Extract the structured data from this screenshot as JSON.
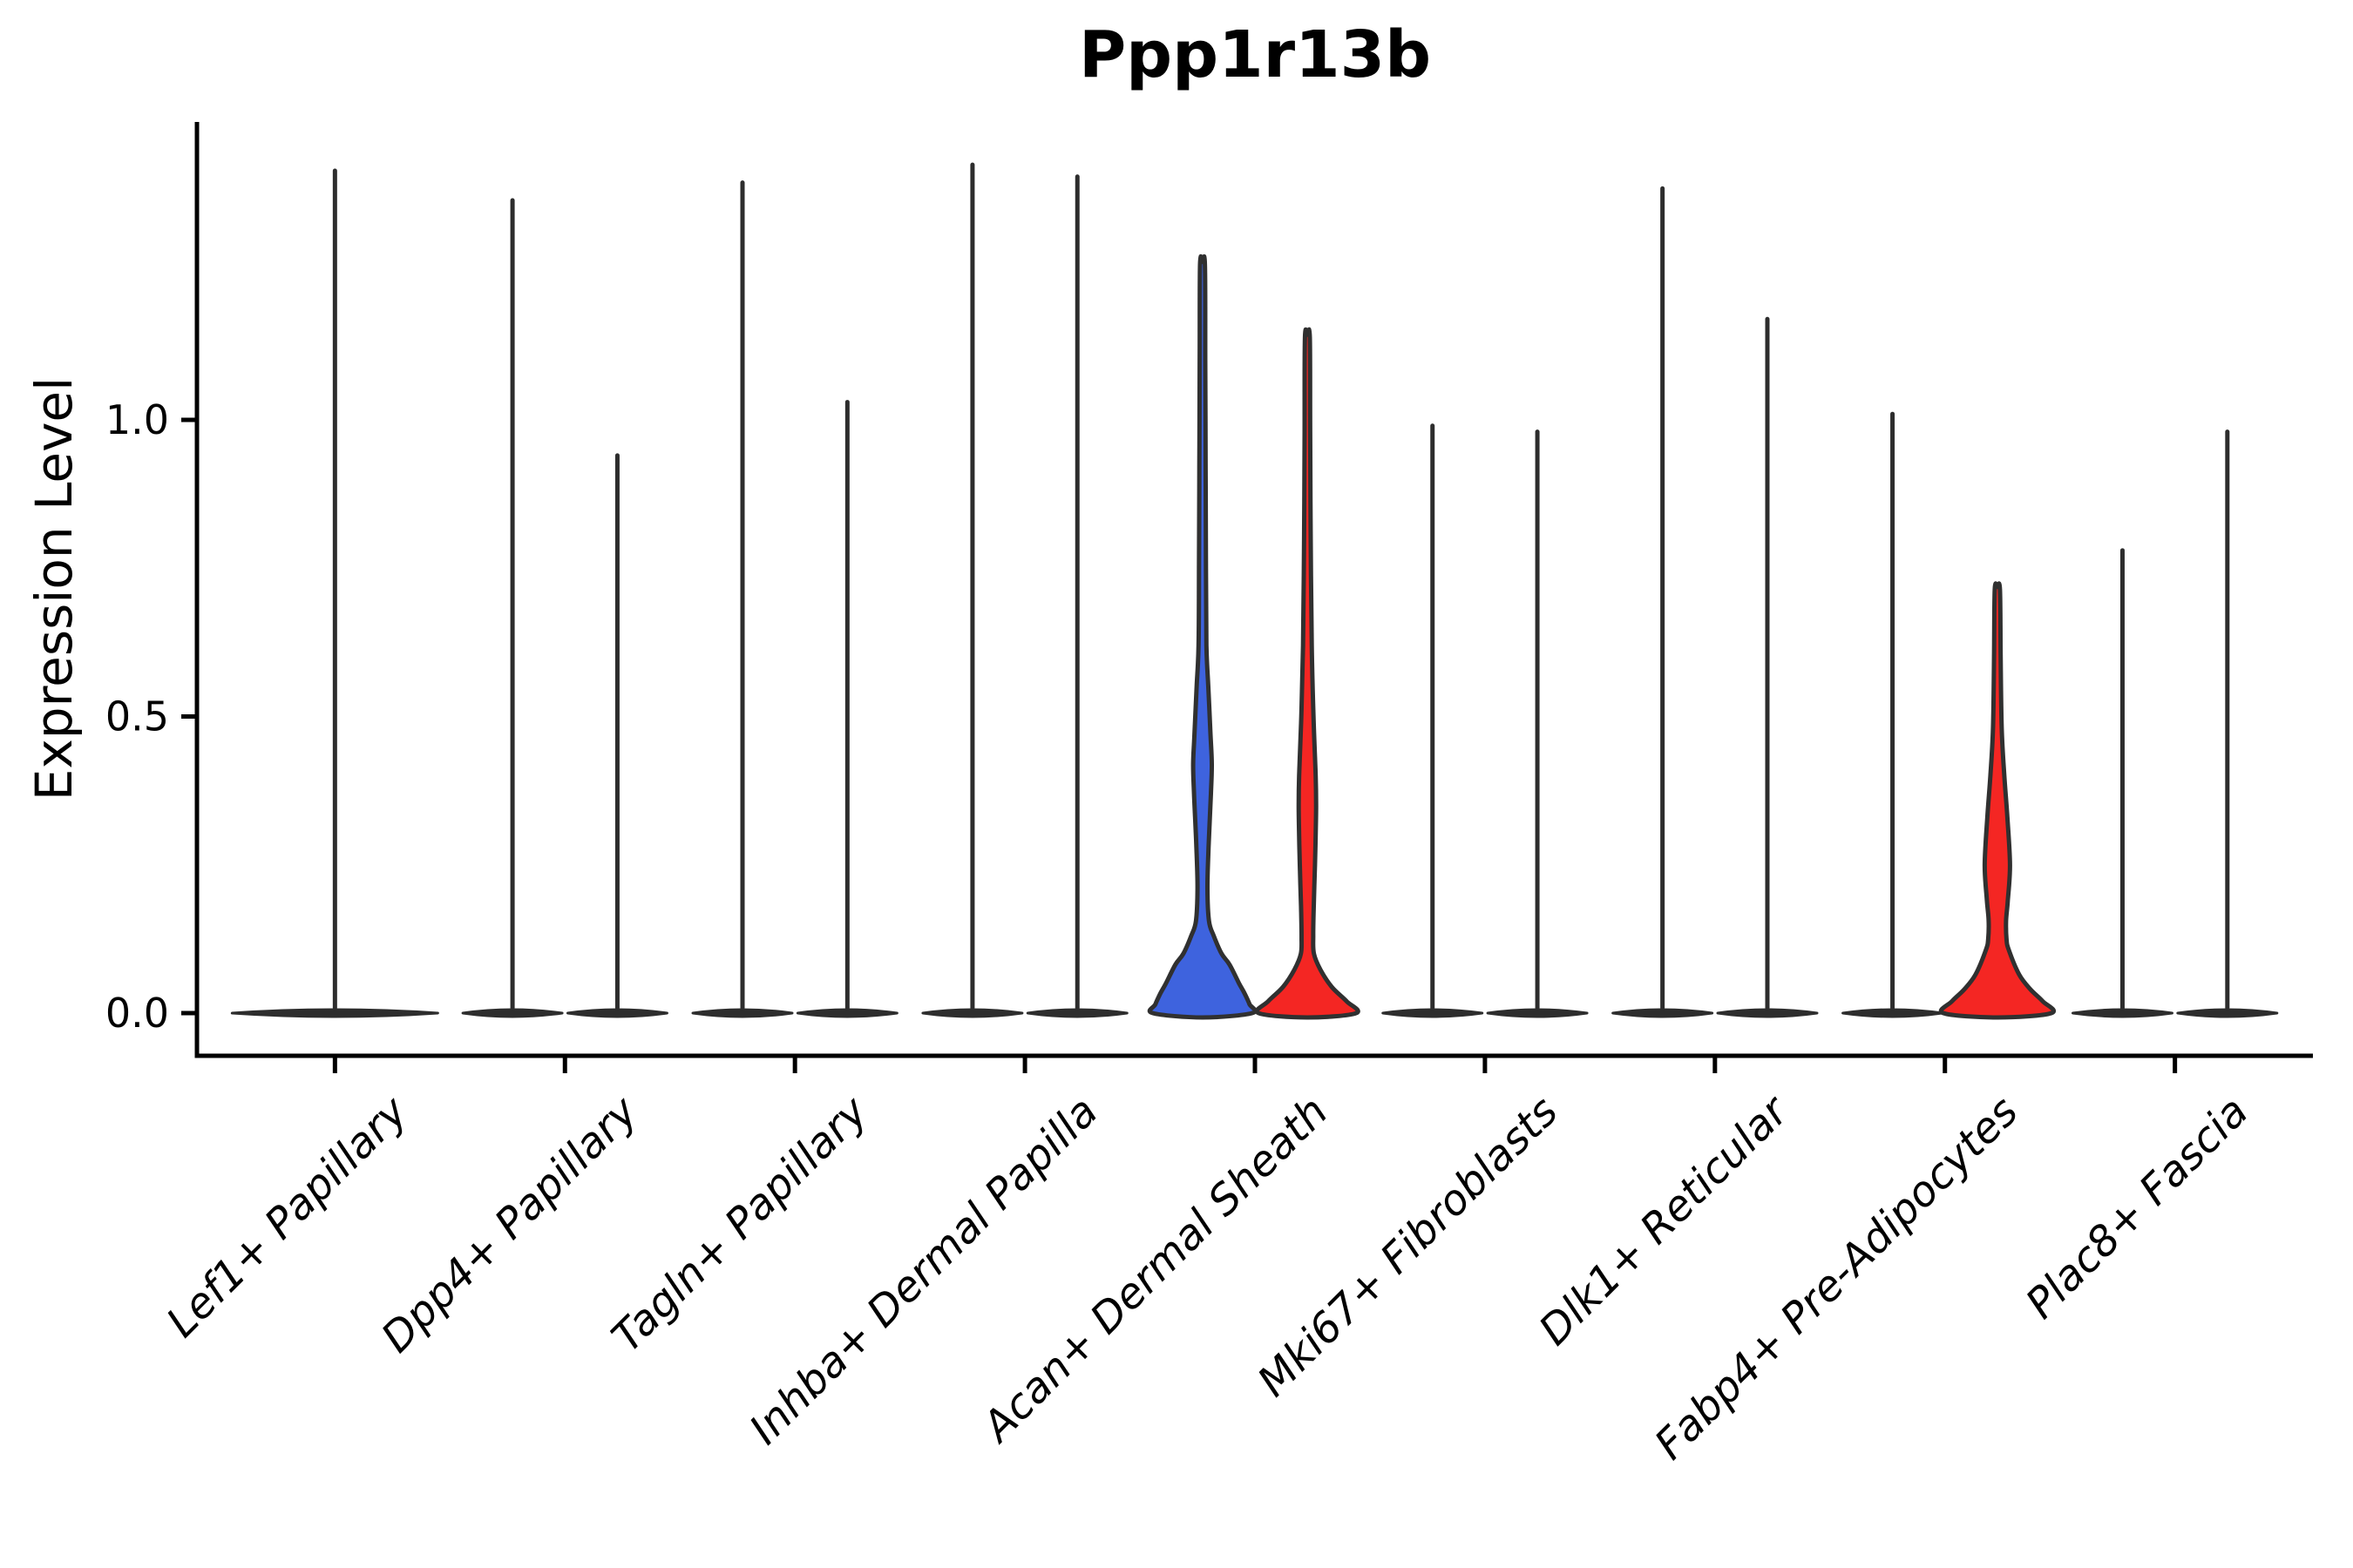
{
  "chart_data": {
    "type": "violin",
    "title": "Ppp1r13b",
    "ylabel": "Expression Level",
    "xlabel": "",
    "grid": false,
    "legend_position": "none",
    "ylim": [
      -0.07,
      1.5
    ],
    "yticks": [
      {
        "label": "0.0",
        "value": 0.0
      },
      {
        "label": "0.5",
        "value": 0.5
      },
      {
        "label": "1.0",
        "value": 1.0
      }
    ],
    "categories": [
      "Lef1+ Papillary",
      "Dpp4+ Papillary",
      "Tagln+ Papillary",
      "Inhba+ Dermal Papilla",
      "Acan+ Dermal Sheath",
      "Mki67+ Fibroblasts",
      "Dlk1+ Reticular",
      "Fabp4+ Pre-Adipocytes",
      "Plac8+ Fascia"
    ],
    "colors": {
      "blue": "#3E63DE",
      "red": "#F42623",
      "thin_violin": "#2D2D2D",
      "outline": "#303030",
      "axis": "#000000",
      "text": "#000000"
    },
    "violins": [
      {
        "category_index": 0,
        "side": "full",
        "fill": "none",
        "max_expression": 1.42
      },
      {
        "category_index": 1,
        "side": "left",
        "fill": "none",
        "max_expression": 1.37
      },
      {
        "category_index": 1,
        "side": "right",
        "fill": "none",
        "max_expression": 0.94
      },
      {
        "category_index": 2,
        "side": "left",
        "fill": "none",
        "max_expression": 1.4
      },
      {
        "category_index": 2,
        "side": "right",
        "fill": "none",
        "max_expression": 1.03
      },
      {
        "category_index": 3,
        "side": "left",
        "fill": "none",
        "max_expression": 1.43
      },
      {
        "category_index": 3,
        "side": "right",
        "fill": "none",
        "max_expression": 1.41
      },
      {
        "category_index": 4,
        "side": "left",
        "fill": "blue",
        "max_expression": 1.26,
        "density_profile": [
          [
            1.262,
            2.8
          ],
          [
            1.1,
            3.2
          ],
          [
            0.92,
            3.6
          ],
          [
            0.75,
            4.0
          ],
          [
            0.62,
            4.5
          ],
          [
            0.55,
            6.7
          ],
          [
            0.47,
            9.2
          ],
          [
            0.42,
            10.7
          ],
          [
            0.37,
            9.7
          ],
          [
            0.28,
            7.0
          ],
          [
            0.21,
            5.7
          ],
          [
            0.155,
            7.5
          ],
          [
            0.13,
            13
          ],
          [
            0.1,
            22
          ],
          [
            0.082,
            31
          ],
          [
            0.05,
            42
          ],
          [
            0.034,
            48
          ],
          [
            0.015,
            54
          ],
          [
            0,
            57
          ]
        ]
      },
      {
        "category_index": 4,
        "side": "right",
        "fill": "red",
        "max_expression": 1.14,
        "density_profile": [
          [
            1.139,
            2.8
          ],
          [
            0.98,
            3.2
          ],
          [
            0.8,
            3.8
          ],
          [
            0.62,
            5.0
          ],
          [
            0.5,
            7.0
          ],
          [
            0.4,
            9.5
          ],
          [
            0.35,
            10.0
          ],
          [
            0.3,
            9.5
          ],
          [
            0.25,
            8.7
          ],
          [
            0.18,
            7.3
          ],
          [
            0.13,
            6.7
          ],
          [
            0.1,
            7.5
          ],
          [
            0.073,
            15
          ],
          [
            0.044,
            28
          ],
          [
            0.02,
            45
          ],
          [
            0,
            56
          ]
        ]
      },
      {
        "category_index": 5,
        "side": "left",
        "fill": "none",
        "max_expression": 0.99
      },
      {
        "category_index": 5,
        "side": "right",
        "fill": "none",
        "max_expression": 0.98
      },
      {
        "category_index": 6,
        "side": "left",
        "fill": "none",
        "max_expression": 1.39
      },
      {
        "category_index": 6,
        "side": "right",
        "fill": "none",
        "max_expression": 1.17
      },
      {
        "category_index": 7,
        "side": "left",
        "fill": "none",
        "max_expression": 1.01
      },
      {
        "category_index": 7,
        "side": "right",
        "fill": "red",
        "max_expression": 0.71,
        "density_profile": [
          [
            0.714,
            3.0
          ],
          [
            0.6,
            3.8
          ],
          [
            0.48,
            5.0
          ],
          [
            0.4,
            8.0
          ],
          [
            0.33,
            11.5
          ],
          [
            0.25,
            14.5
          ],
          [
            0.19,
            12.0
          ],
          [
            0.156,
            10.0
          ],
          [
            0.125,
            10.5
          ],
          [
            0.107,
            13.0
          ],
          [
            0.065,
            25.0
          ],
          [
            0.04,
            38.0
          ],
          [
            0.02,
            52.0
          ],
          [
            0,
            62.0
          ]
        ]
      },
      {
        "category_index": 8,
        "side": "left",
        "fill": "none",
        "max_expression": 0.78
      },
      {
        "category_index": 8,
        "side": "right",
        "fill": "none",
        "max_expression": 0.98
      }
    ]
  }
}
